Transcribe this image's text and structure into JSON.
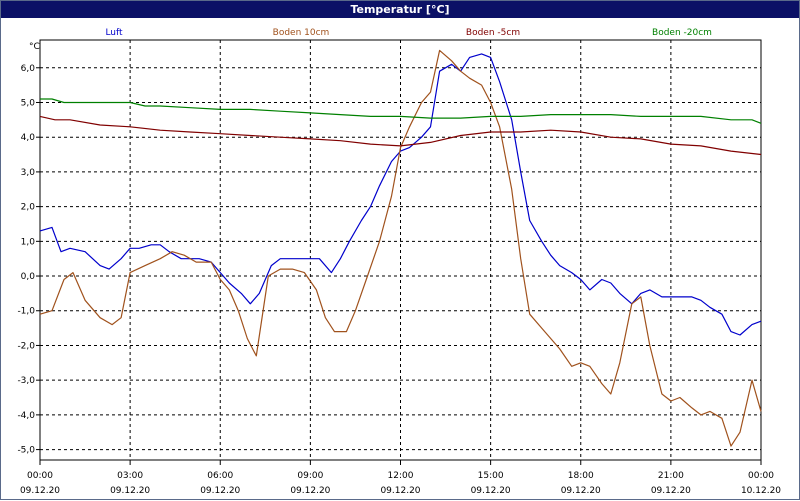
{
  "window": {
    "title": "Temperatur [°C]"
  },
  "chart_data": {
    "type": "line",
    "ylabel": "°C",
    "ylim": [
      -5.3,
      6.8
    ],
    "yticks": [
      -5,
      -4,
      -3,
      -2,
      -1,
      0,
      1,
      2,
      3,
      4,
      5,
      6
    ],
    "ytick_labels": [
      "-5,0",
      "-4,0",
      "-3,0",
      "-2,0",
      "-1,0",
      "0,0",
      "1,0",
      "2,0",
      "3,0",
      "4,0",
      "5,0",
      "6,0"
    ],
    "xlim": [
      0,
      24
    ],
    "xticks": [
      {
        "time": "00:00",
        "date": "09.12.20"
      },
      {
        "time": "03:00",
        "date": "09.12.20"
      },
      {
        "time": "06:00",
        "date": "09.12.20"
      },
      {
        "time": "09:00",
        "date": "09.12.20"
      },
      {
        "time": "12:00",
        "date": "09.12.20"
      },
      {
        "time": "15:00",
        "date": "09.12.20"
      },
      {
        "time": "18:00",
        "date": "09.12.20"
      },
      {
        "time": "21:00",
        "date": "09.12.20"
      },
      {
        "time": "00:00",
        "date": "10.12.20"
      }
    ],
    "grid": true,
    "legend_position": "top",
    "series": [
      {
        "name": "Luft",
        "color": "#0000cc",
        "x": [
          0,
          0.4,
          0.7,
          1,
          1.5,
          2,
          2.3,
          2.7,
          3,
          3.3,
          3.7,
          4,
          4.3,
          4.7,
          5,
          5.3,
          5.7,
          6,
          6.3,
          6.7,
          7,
          7.3,
          7.7,
          8,
          8.3,
          8.7,
          9,
          9.3,
          9.7,
          10,
          10.3,
          10.7,
          11,
          11.3,
          11.7,
          12,
          12.3,
          12.7,
          13,
          13.3,
          13.7,
          14,
          14.3,
          14.7,
          15,
          15.3,
          15.7,
          16,
          16.3,
          16.7,
          17,
          17.3,
          17.7,
          18,
          18.3,
          18.7,
          19,
          19.3,
          19.7,
          20,
          20.3,
          20.7,
          21,
          21.3,
          21.7,
          22,
          22.3,
          22.7,
          23,
          23.3,
          23.7,
          24
        ],
        "values": [
          1.3,
          1.4,
          0.7,
          0.8,
          0.7,
          0.3,
          0.2,
          0.5,
          0.8,
          0.8,
          0.9,
          0.9,
          0.7,
          0.5,
          0.5,
          0.5,
          0.4,
          0.1,
          -0.2,
          -0.5,
          -0.8,
          -0.5,
          0.3,
          0.5,
          0.5,
          0.5,
          0.5,
          0.5,
          0.1,
          0.5,
          1.0,
          1.6,
          2.0,
          2.6,
          3.3,
          3.6,
          3.7,
          4.0,
          4.3,
          5.9,
          6.1,
          5.9,
          6.3,
          6.4,
          6.3,
          5.6,
          4.5,
          3.0,
          1.6,
          1.0,
          0.6,
          0.3,
          0.1,
          -0.1,
          -0.4,
          -0.1,
          -0.2,
          -0.5,
          -0.8,
          -0.5,
          -0.4,
          -0.6,
          -0.6,
          -0.6,
          -0.6,
          -0.7,
          -0.9,
          -1.1,
          -1.6,
          -1.7,
          -1.4,
          -1.3
        ]
      },
      {
        "name": "Boden 10cm",
        "color": "#a0521d",
        "x": [
          0,
          0.4,
          0.8,
          1.1,
          1.5,
          2,
          2.4,
          2.7,
          3,
          3.5,
          4,
          4.4,
          4.8,
          5.2,
          5.7,
          6,
          6.3,
          6.6,
          6.9,
          7.2,
          7.6,
          8,
          8.4,
          8.8,
          9.2,
          9.5,
          9.8,
          10.2,
          10.5,
          10.9,
          11.3,
          11.7,
          12,
          12.3,
          12.7,
          13,
          13.3,
          13.7,
          14,
          14.3,
          14.7,
          15,
          15.3,
          15.7,
          16,
          16.3,
          16.7,
          17,
          17.3,
          17.7,
          18,
          18.3,
          18.7,
          19,
          19.3,
          19.7,
          20,
          20.3,
          20.7,
          21,
          21.3,
          21.7,
          22,
          22.3,
          22.7,
          23,
          23.3,
          23.7,
          24
        ],
        "values": [
          -1.1,
          -1.0,
          -0.1,
          0.1,
          -0.7,
          -1.2,
          -1.4,
          -1.2,
          0.1,
          0.3,
          0.5,
          0.7,
          0.6,
          0.4,
          0.4,
          -0.1,
          -0.4,
          -1.0,
          -1.8,
          -2.3,
          0.0,
          0.2,
          0.2,
          0.1,
          -0.4,
          -1.2,
          -1.6,
          -1.6,
          -1.0,
          0.0,
          1.0,
          2.3,
          3.7,
          4.3,
          5.0,
          5.3,
          6.5,
          6.2,
          5.9,
          5.7,
          5.5,
          5.0,
          4.3,
          2.5,
          0.5,
          -1.1,
          -1.5,
          -1.8,
          -2.1,
          -2.6,
          -2.5,
          -2.6,
          -3.1,
          -3.4,
          -2.5,
          -0.8,
          -0.6,
          -2.0,
          -3.4,
          -3.6,
          -3.5,
          -3.8,
          -4.0,
          -3.9,
          -4.1,
          -4.9,
          -4.5,
          -3.0,
          -3.9
        ]
      },
      {
        "name": "Boden -5cm",
        "color": "#800000",
        "x": [
          0,
          0.5,
          1,
          2,
          3,
          4,
          5,
          6,
          7,
          8,
          9,
          10,
          11,
          12,
          13,
          14,
          15,
          16,
          17,
          18,
          19,
          20,
          21,
          22,
          23,
          24
        ],
        "values": [
          4.6,
          4.5,
          4.5,
          4.35,
          4.3,
          4.2,
          4.15,
          4.1,
          4.05,
          4.0,
          3.95,
          3.9,
          3.8,
          3.75,
          3.85,
          4.05,
          4.15,
          4.15,
          4.2,
          4.15,
          4.0,
          3.95,
          3.8,
          3.75,
          3.6,
          3.5
        ]
      },
      {
        "name": "Boden -20cm",
        "color": "#008000",
        "x": [
          0,
          0.4,
          0.8,
          1.5,
          2,
          3,
          3.5,
          4,
          5,
          6,
          7,
          8,
          9,
          10,
          11,
          12,
          13,
          14,
          15,
          16,
          17,
          18,
          19,
          20,
          21,
          22,
          23,
          23.7,
          24
        ],
        "values": [
          5.1,
          5.1,
          5.0,
          5.0,
          5.0,
          5.0,
          4.9,
          4.9,
          4.85,
          4.8,
          4.8,
          4.75,
          4.7,
          4.65,
          4.6,
          4.6,
          4.55,
          4.55,
          4.6,
          4.6,
          4.65,
          4.65,
          4.65,
          4.6,
          4.6,
          4.6,
          4.5,
          4.5,
          4.4
        ]
      }
    ]
  }
}
